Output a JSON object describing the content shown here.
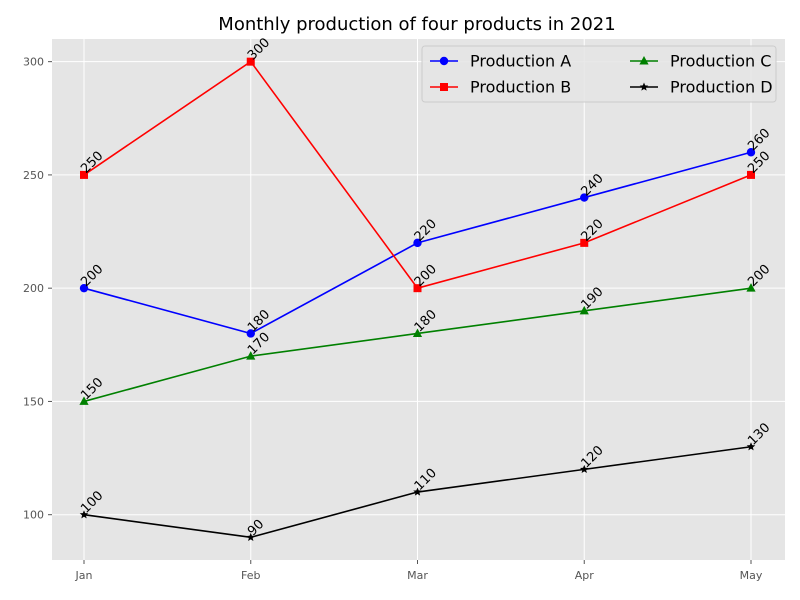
{
  "chart_data": {
    "type": "line",
    "title": "Monthly production of four products in 2021",
    "xlabel": "",
    "ylabel": "",
    "categories": [
      "Jan",
      "Feb",
      "Mar",
      "Apr",
      "May"
    ],
    "ylim": [
      80,
      310
    ],
    "yticks": [
      100,
      150,
      200,
      250,
      300
    ],
    "grid": true,
    "legend": {
      "placement": "top-right",
      "columns": 2
    },
    "series": [
      {
        "name": "Production A",
        "values": [
          200,
          180,
          220,
          240,
          260
        ],
        "color": "#0000ff",
        "marker": "circle"
      },
      {
        "name": "Production B",
        "values": [
          250,
          300,
          200,
          220,
          250
        ],
        "color": "#ff0000",
        "marker": "square"
      },
      {
        "name": "Production C",
        "values": [
          150,
          170,
          180,
          190,
          200
        ],
        "color": "#008000",
        "marker": "triangle"
      },
      {
        "name": "Production D",
        "values": [
          100,
          90,
          110,
          120,
          130
        ],
        "color": "#000000",
        "marker": "star"
      }
    ]
  }
}
